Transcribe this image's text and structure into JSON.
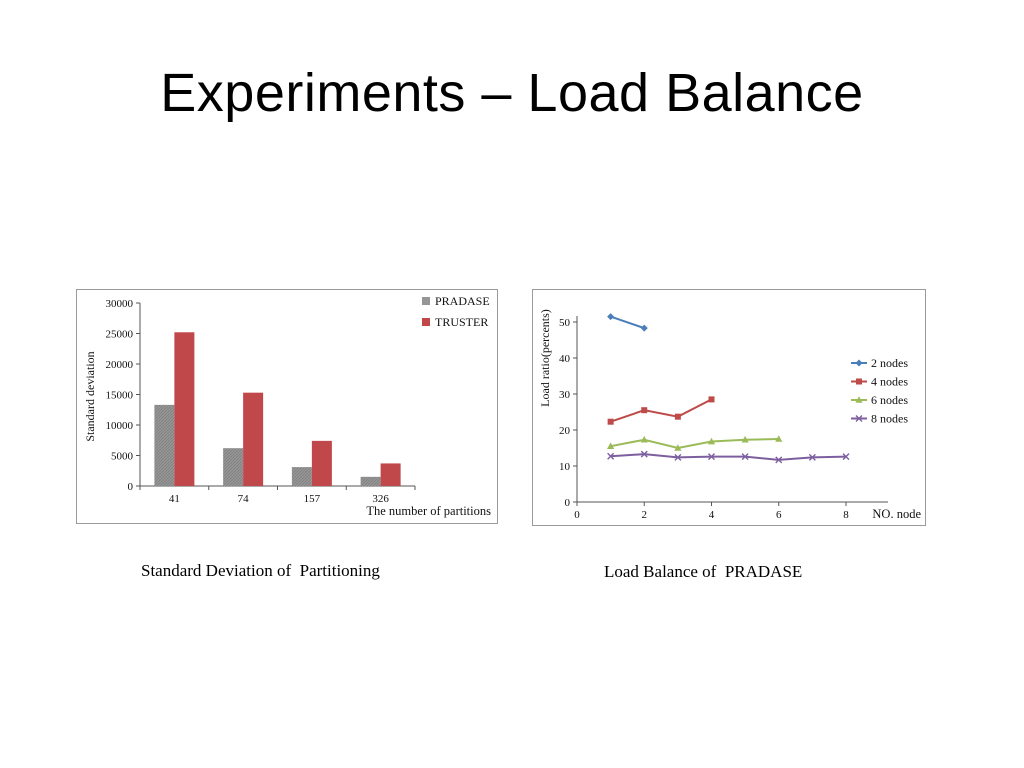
{
  "slide": {
    "title": "Experiments – Load Balance",
    "captions": {
      "left": "Standard Deviation of  Partitioning",
      "right": "Load Balance of  PRADASE"
    }
  },
  "chart_data": [
    {
      "type": "bar",
      "title": "",
      "xlabel": "The number of partitions",
      "ylabel": "Standard deviation",
      "categories": [
        "41",
        "74",
        "157",
        "326"
      ],
      "ylim": [
        0,
        30000
      ],
      "yticks": [
        "0",
        "5000",
        "10000",
        "15000",
        "20000",
        "25000",
        "30000"
      ],
      "grid": false,
      "legend_position": "top-right",
      "series": [
        {
          "name": "PRADASE",
          "color": "#969696",
          "values": [
            13300,
            6200,
            3100,
            1500
          ]
        },
        {
          "name": "TRUSTER",
          "color": "#c0474a",
          "values": [
            25200,
            15300,
            7400,
            3700
          ]
        }
      ]
    },
    {
      "type": "line",
      "title": "",
      "xlabel": "NO. node",
      "ylabel": "Load ratio(percents)",
      "xlim": [
        0,
        8
      ],
      "ylim": [
        0,
        60
      ],
      "xticks": [
        "0",
        "2",
        "4",
        "6",
        "8"
      ],
      "yticks": [
        "0",
        "10",
        "20",
        "30",
        "40",
        "50"
      ],
      "grid": false,
      "legend_position": "right",
      "series": [
        {
          "name": "2 nodes",
          "color": "#4a7ebb",
          "marker": "diamond",
          "x": [
            1,
            2
          ],
          "y": [
            51.5,
            48.3
          ]
        },
        {
          "name": "4 nodes",
          "color": "#be4b48",
          "marker": "square",
          "x": [
            1,
            2,
            3,
            4
          ],
          "y": [
            22.3,
            25.5,
            23.7,
            28.5
          ]
        },
        {
          "name": "6 nodes",
          "color": "#9bbb59",
          "marker": "triangle",
          "x": [
            1,
            2,
            3,
            4,
            5,
            6
          ],
          "y": [
            15.5,
            17.3,
            15,
            16.8,
            17.3,
            17.5
          ]
        },
        {
          "name": "8 nodes",
          "color": "#7d5fa0",
          "marker": "x",
          "x": [
            1,
            2,
            3,
            4,
            5,
            6,
            7,
            8
          ],
          "y": [
            12.7,
            13.3,
            12.4,
            12.6,
            12.6,
            11.7,
            12.4,
            12.6
          ]
        }
      ]
    }
  ]
}
